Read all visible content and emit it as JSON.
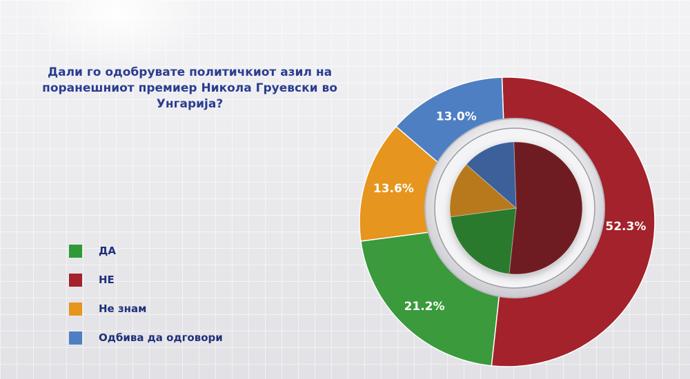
{
  "chart_data": {
    "type": "pie",
    "title": "Дали го одобрувате политичкиот азил на поранешниот премиер Никола Груевски во Унгарија?",
    "categories": [
      "НЕ",
      "ДА",
      "Не знам",
      "Одбива да одговори"
    ],
    "values": [
      52.3,
      21.2,
      13.6,
      13.0
    ],
    "labels": [
      "52.3%",
      "21.2%",
      "13.6%",
      "13.0%"
    ],
    "colors": [
      "#a3222b",
      "#3a9a3c",
      "#e6951f",
      "#4e7fc2"
    ],
    "inner_colors": [
      "#6e1c22",
      "#2c7a2f",
      "#b8781f",
      "#3b619a"
    ],
    "legend_position": "left"
  },
  "legend": {
    "items": [
      {
        "label": "ДА",
        "color": "#2f9a35"
      },
      {
        "label": "НЕ",
        "color": "#a3222b"
      },
      {
        "label": "Не знам",
        "color": "#e6951f"
      },
      {
        "label": "Одбива да одговори",
        "color": "#4e7fc2"
      }
    ]
  }
}
